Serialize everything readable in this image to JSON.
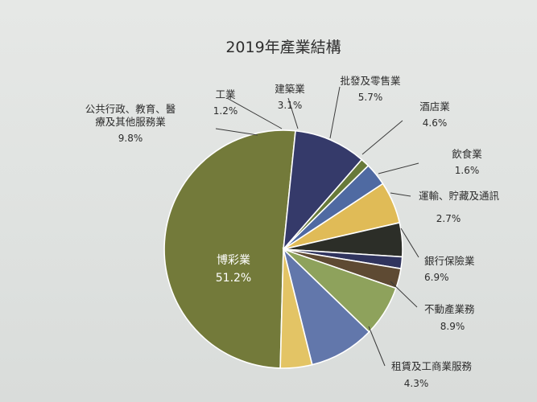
{
  "chart_data": {
    "type": "pie",
    "title": "2019年產業結構",
    "unit": "%",
    "slices": [
      {
        "name": "博彩業",
        "name_lines": [
          "博彩業"
        ],
        "value": 51.2,
        "label": "51.2%",
        "color": "#737a3a"
      },
      {
        "name": "公共行政、教育、醫療及其他服務業",
        "name_lines": [
          "公共行政、教育、醫",
          "療及其他服務業"
        ],
        "value": 9.8,
        "label": "9.8%",
        "color": "#353a6a"
      },
      {
        "name": "工業",
        "name_lines": [
          "工業"
        ],
        "value": 1.2,
        "label": "1.2%",
        "color": "#687a3a"
      },
      {
        "name": "建築業",
        "name_lines": [
          "建築業"
        ],
        "value": 3.1,
        "label": "3.1%",
        "color": "#4f6aa2"
      },
      {
        "name": "批發及零售業",
        "name_lines": [
          "批發及零售業"
        ],
        "value": 5.7,
        "label": "5.7%",
        "color": "#e0bb57"
      },
      {
        "name": "酒店業",
        "name_lines": [
          "酒店業"
        ],
        "value": 4.6,
        "label": "4.6%",
        "color": "#2c2e28"
      },
      {
        "name": "飲食業",
        "name_lines": [
          "飲食業"
        ],
        "value": 1.6,
        "label": "1.6%",
        "color": "#30345e"
      },
      {
        "name": "運輸、貯藏及通訊",
        "name_lines": [
          "運輸、貯藏及通訊"
        ],
        "value": 2.7,
        "label": "2.7%",
        "color": "#5e4a33"
      },
      {
        "name": "銀行保險業",
        "name_lines": [
          "銀行保險業"
        ],
        "value": 6.9,
        "label": "6.9%",
        "color": "#8ea25c"
      },
      {
        "name": "不動產業務",
        "name_lines": [
          "不動產業務"
        ],
        "value": 8.9,
        "label": "8.9%",
        "color": "#6277ab"
      },
      {
        "name": "租賃及工商業服務",
        "name_lines": [
          "租賃及工商業服務"
        ],
        "value": 4.3,
        "label": "4.3%",
        "color": "#e3c465"
      }
    ]
  }
}
